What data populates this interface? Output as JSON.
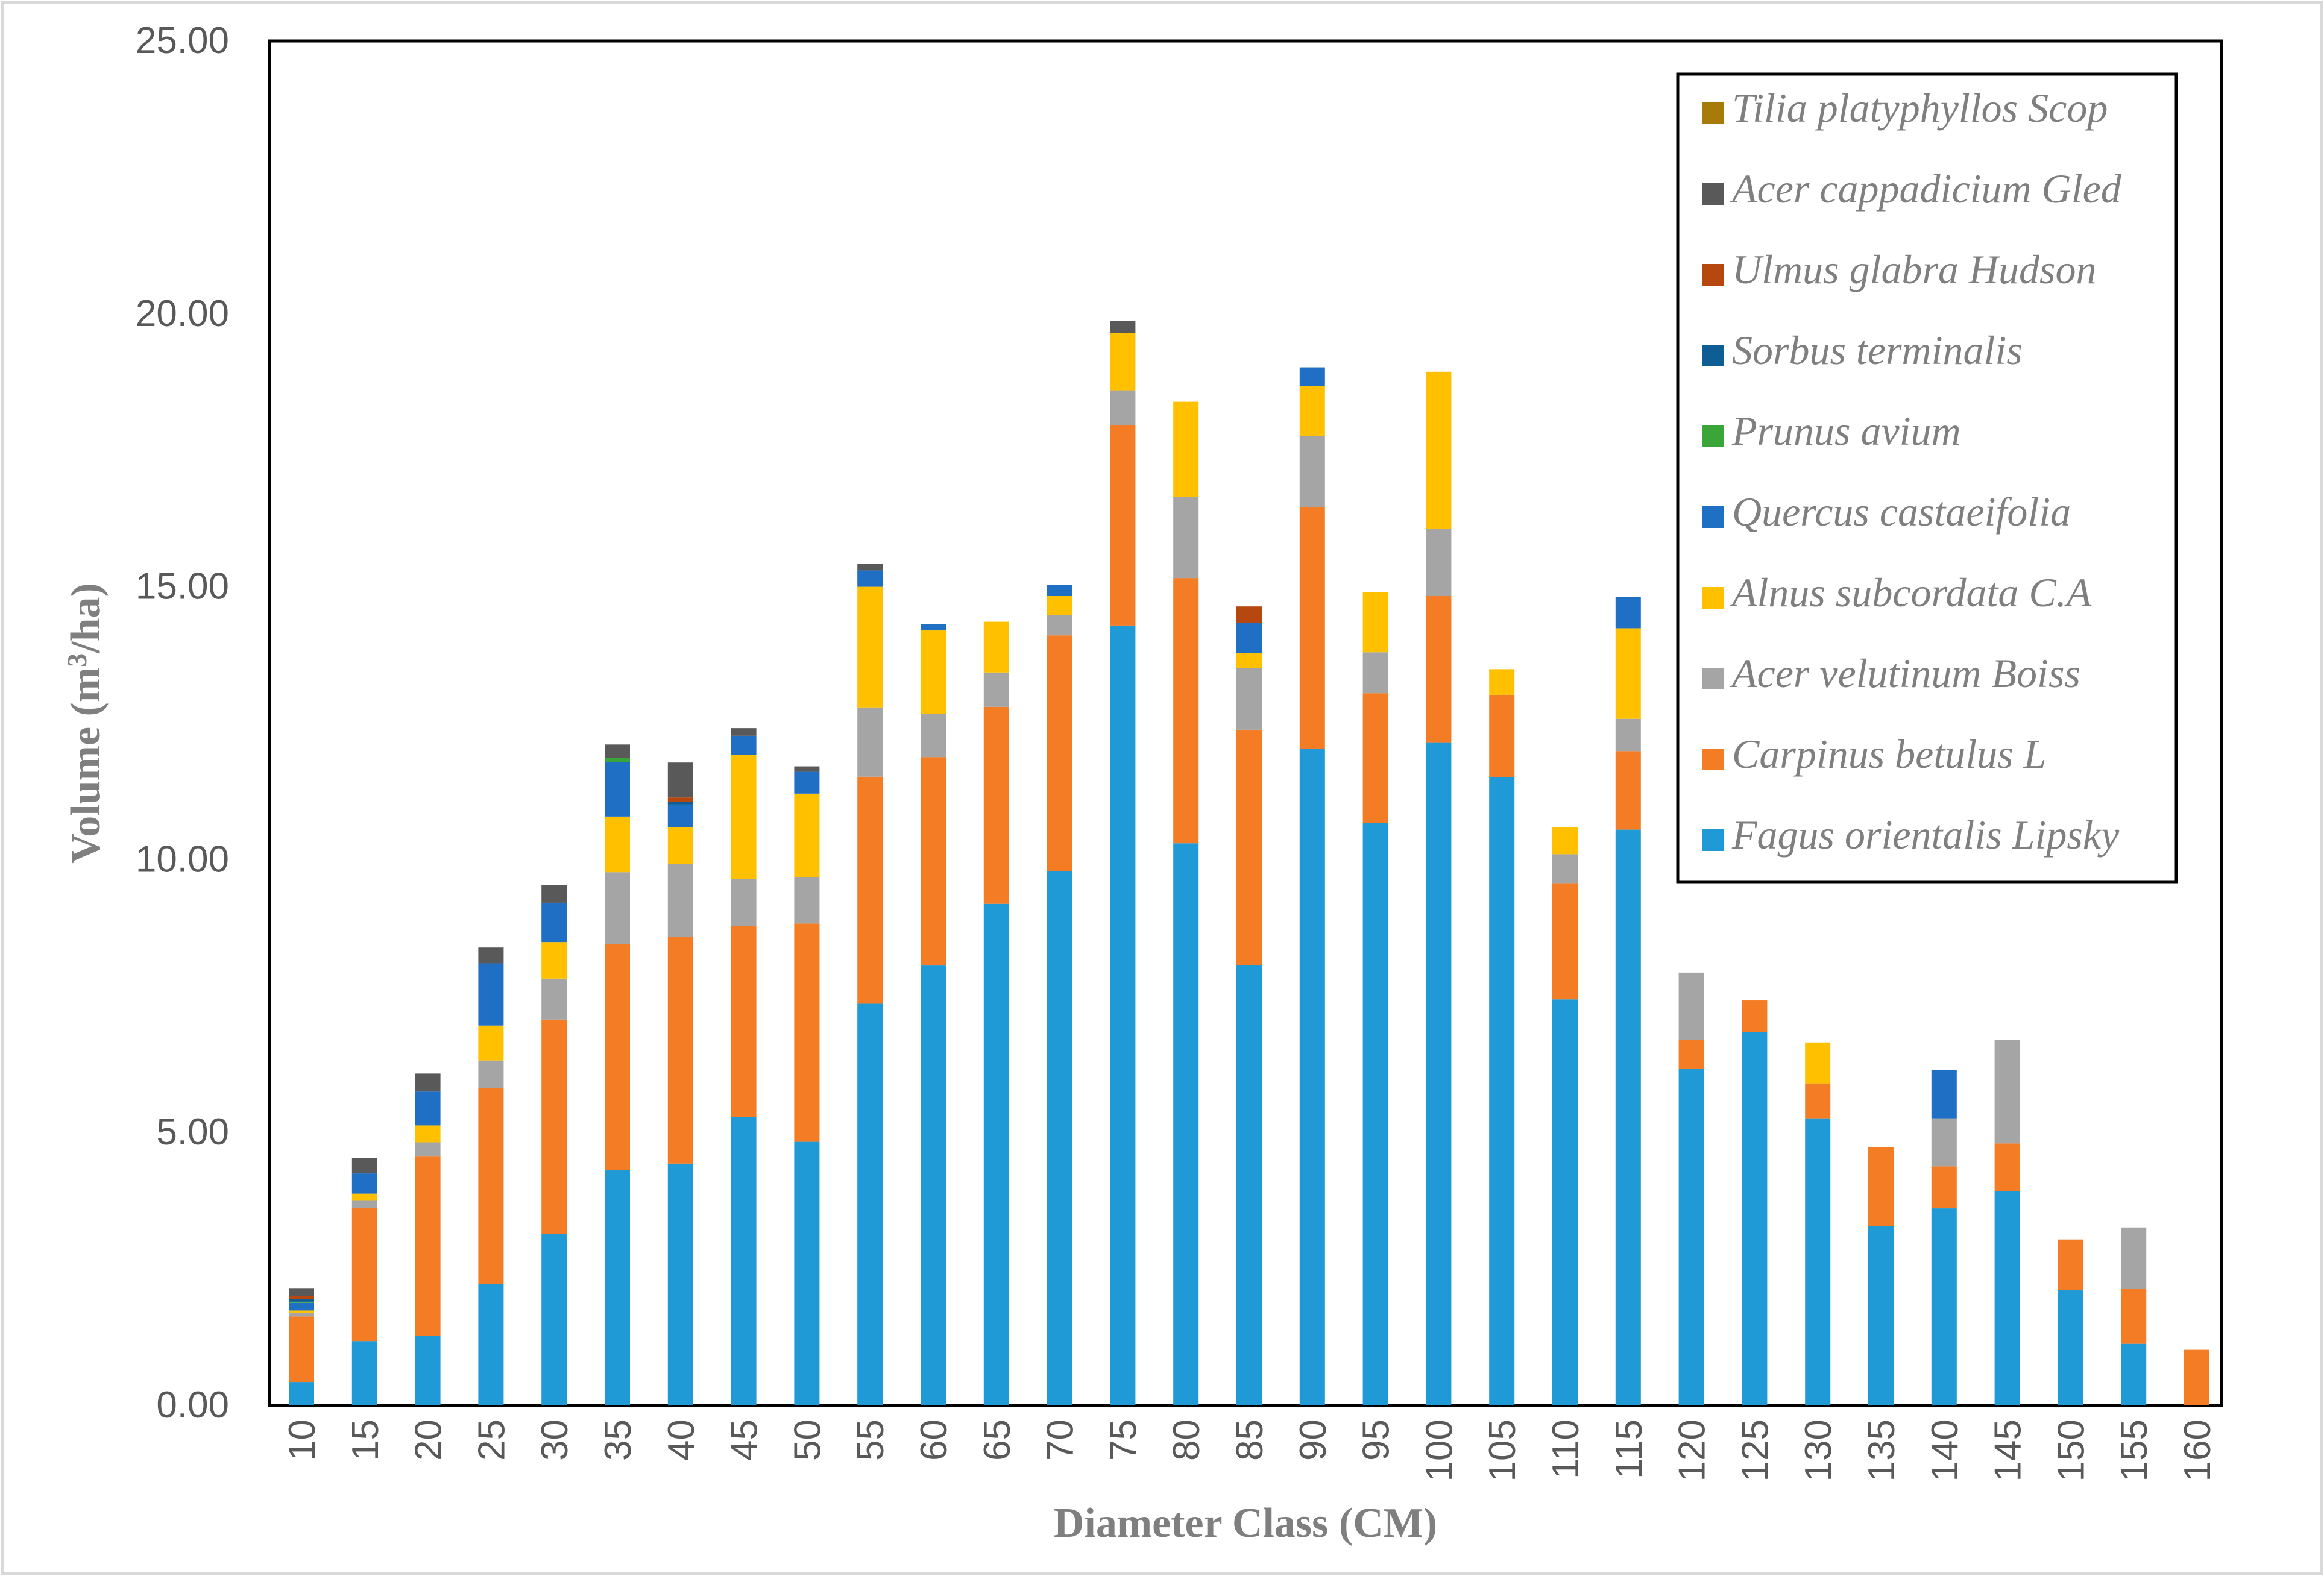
{
  "chart_data": {
    "type": "bar",
    "stacked": true,
    "title": "",
    "xlabel": "Diameter Class (CM)",
    "ylabel_prefix": "Volume (m",
    "ylabel_sup": "3",
    "ylabel_suffix": "/ha)",
    "ylim": [
      0,
      25
    ],
    "y_ticks": [
      "0.00",
      "5.00",
      "10.00",
      "15.00",
      "20.00",
      "25.00"
    ],
    "categories": [
      "10",
      "15",
      "20",
      "25",
      "30",
      "35",
      "40",
      "45",
      "50",
      "55",
      "60",
      "65",
      "70",
      "75",
      "80",
      "85",
      "90",
      "95",
      "100",
      "105",
      "110",
      "115",
      "120",
      "125",
      "130",
      "135",
      "140",
      "145",
      "150",
      "155",
      "160"
    ],
    "series": [
      {
        "name": "Fagus orientalis Lipsky",
        "color": "#1f9ad6",
        "values": [
          0.43,
          1.18,
          1.28,
          2.23,
          3.14,
          4.31,
          4.43,
          5.28,
          4.83,
          7.36,
          8.06,
          9.19,
          9.79,
          14.29,
          10.3,
          8.07,
          12.03,
          10.67,
          12.14,
          11.51,
          7.44,
          10.55,
          6.17,
          6.84,
          5.26,
          3.28,
          3.61,
          3.93,
          2.11,
          1.13,
          0.0
        ]
      },
      {
        "name": "Carpinus betulus L",
        "color": "#f47c25",
        "values": [
          1.2,
          2.44,
          3.29,
          3.58,
          3.93,
          4.14,
          4.16,
          3.5,
          4.0,
          4.16,
          3.82,
          3.61,
          4.32,
          3.67,
          4.86,
          4.31,
          4.43,
          2.38,
          2.69,
          1.51,
          2.13,
          1.44,
          0.53,
          0.58,
          0.64,
          1.45,
          0.77,
          0.87,
          0.93,
          1.01,
          1.02
        ]
      },
      {
        "name": "Acer velutinum Boiss",
        "color": "#a5a5a5",
        "values": [
          0.07,
          0.14,
          0.25,
          0.51,
          0.75,
          1.32,
          1.33,
          0.87,
          0.85,
          1.27,
          0.79,
          0.63,
          0.37,
          0.64,
          1.49,
          1.13,
          1.3,
          0.75,
          1.23,
          0.0,
          0.53,
          0.59,
          1.23,
          0.0,
          0.0,
          0.0,
          0.88,
          1.9,
          0.0,
          1.12,
          0.0
        ]
      },
      {
        "name": "Alnus subcordata C.A",
        "color": "#ffc000",
        "values": [
          0.04,
          0.12,
          0.31,
          0.64,
          0.67,
          1.02,
          0.68,
          2.27,
          1.53,
          2.21,
          1.53,
          0.93,
          0.35,
          1.05,
          1.74,
          0.28,
          0.92,
          1.1,
          2.88,
          0.47,
          0.5,
          1.66,
          0.0,
          0.0,
          0.75,
          0.0,
          0.0,
          0.0,
          0.0,
          0.0,
          0.0
        ]
      },
      {
        "name": "Quercus castaeifolia",
        "color": "#1f6fc4",
        "values": [
          0.14,
          0.37,
          0.62,
          1.14,
          0.72,
          1.0,
          0.41,
          0.35,
          0.4,
          0.3,
          0.12,
          0.0,
          0.2,
          0.0,
          0.0,
          0.55,
          0.34,
          0.0,
          0.0,
          0.0,
          0.0,
          0.57,
          0.0,
          0.0,
          0.0,
          0.0,
          0.88,
          0.0,
          0.0,
          0.0,
          0.0
        ]
      },
      {
        "name": "Prunus avium",
        "color": "#3aa63a",
        "values": [
          0.02,
          0.0,
          0.0,
          0.0,
          0.0,
          0.07,
          0.0,
          0.0,
          0.0,
          0.0,
          0.0,
          0.0,
          0.0,
          0.0,
          0.0,
          0.0,
          0.0,
          0.0,
          0.0,
          0.0,
          0.0,
          0.0,
          0.0,
          0.0,
          0.0,
          0.0,
          0.0,
          0.0,
          0.0,
          0.0,
          0.0
        ]
      },
      {
        "name": "Sorbus terminalis",
        "color": "#0e5e95",
        "values": [
          0.05,
          0.0,
          0.0,
          0.0,
          0.0,
          0.0,
          0.05,
          0.0,
          0.0,
          0.0,
          0.0,
          0.0,
          0.0,
          0.0,
          0.0,
          0.0,
          0.0,
          0.0,
          0.0,
          0.0,
          0.0,
          0.0,
          0.0,
          0.0,
          0.0,
          0.0,
          0.0,
          0.0,
          0.0,
          0.0,
          0.0
        ]
      },
      {
        "name": "Ulmus glabra Hudson",
        "color": "#b5470f",
        "values": [
          0.05,
          0.0,
          0.0,
          0.0,
          0.0,
          0.0,
          0.08,
          0.0,
          0.0,
          0.0,
          0.0,
          0.0,
          0.0,
          0.0,
          0.0,
          0.3,
          0.0,
          0.0,
          0.0,
          0.0,
          0.0,
          0.0,
          0.0,
          0.0,
          0.0,
          0.0,
          0.0,
          0.0,
          0.0,
          0.0,
          0.0
        ]
      },
      {
        "name": "Acer cappadicium Gled",
        "color": "#595959",
        "values": [
          0.15,
          0.28,
          0.33,
          0.29,
          0.33,
          0.25,
          0.64,
          0.14,
          0.1,
          0.12,
          0.0,
          0.0,
          0.0,
          0.22,
          0.0,
          0.0,
          0.0,
          0.0,
          0.0,
          0.0,
          0.0,
          0.0,
          0.0,
          0.0,
          0.0,
          0.0,
          0.0,
          0.0,
          0.0,
          0.0,
          0.0
        ]
      },
      {
        "name": "Tilia platyphyllos Scop",
        "color": "#a87a0a",
        "values": [
          0.0,
          0.0,
          0.0,
          0.0,
          0.0,
          0.0,
          0.0,
          0.0,
          0.0,
          0.0,
          0.0,
          0.0,
          0.0,
          0.0,
          0.0,
          0.0,
          0.0,
          0.0,
          0.0,
          0.0,
          0.0,
          0.0,
          0.0,
          0.0,
          0.0,
          0.0,
          0.0,
          0.0,
          0.0,
          0.0,
          0.0
        ]
      }
    ],
    "legend_order": [
      9,
      8,
      7,
      6,
      5,
      4,
      3,
      2,
      1,
      0
    ],
    "legend_position": "top-right",
    "grid": false
  }
}
